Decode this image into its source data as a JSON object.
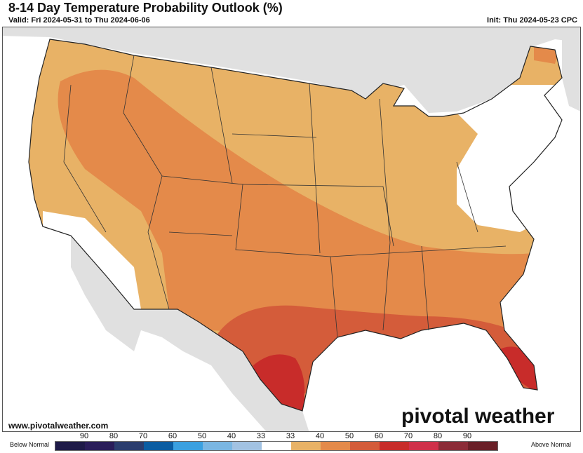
{
  "header": {
    "title": "8-14 Day Temperature Probability Outlook (%)",
    "valid": "Valid: Fri 2024-05-31 to Thu 2024-06-06",
    "init": "Init: Thu 2024-05-23 CPC"
  },
  "footer": {
    "website": "www.pivotalweather.com",
    "brand": "pivotal weather"
  },
  "legend": {
    "below_label": "Below Normal",
    "above_label": "Above Normal",
    "ticks": [
      "90",
      "80",
      "70",
      "60",
      "50",
      "40",
      "33",
      "33",
      "40",
      "50",
      "60",
      "70",
      "80",
      "90"
    ],
    "colors": [
      "#1e1a48",
      "#2a1d5a",
      "#2b3d6e",
      "#0b5da2",
      "#3aa0e0",
      "#7ab6e2",
      "#a2c2e2",
      "#ffffff",
      "#e8b266",
      "#e48a4a",
      "#d45c3a",
      "#c82c2a",
      "#d0304a",
      "#8c2c38",
      "#6a2028"
    ]
  },
  "map": {
    "colors": {
      "ocean": "#ffffff",
      "foreign_land": "#e0e0e0",
      "near_normal": "#ffffff",
      "above_33_40": "#e8b266",
      "above_40_50": "#e48a4a",
      "above_50_60": "#d45c3a",
      "above_60_70": "#c82c2a"
    }
  }
}
